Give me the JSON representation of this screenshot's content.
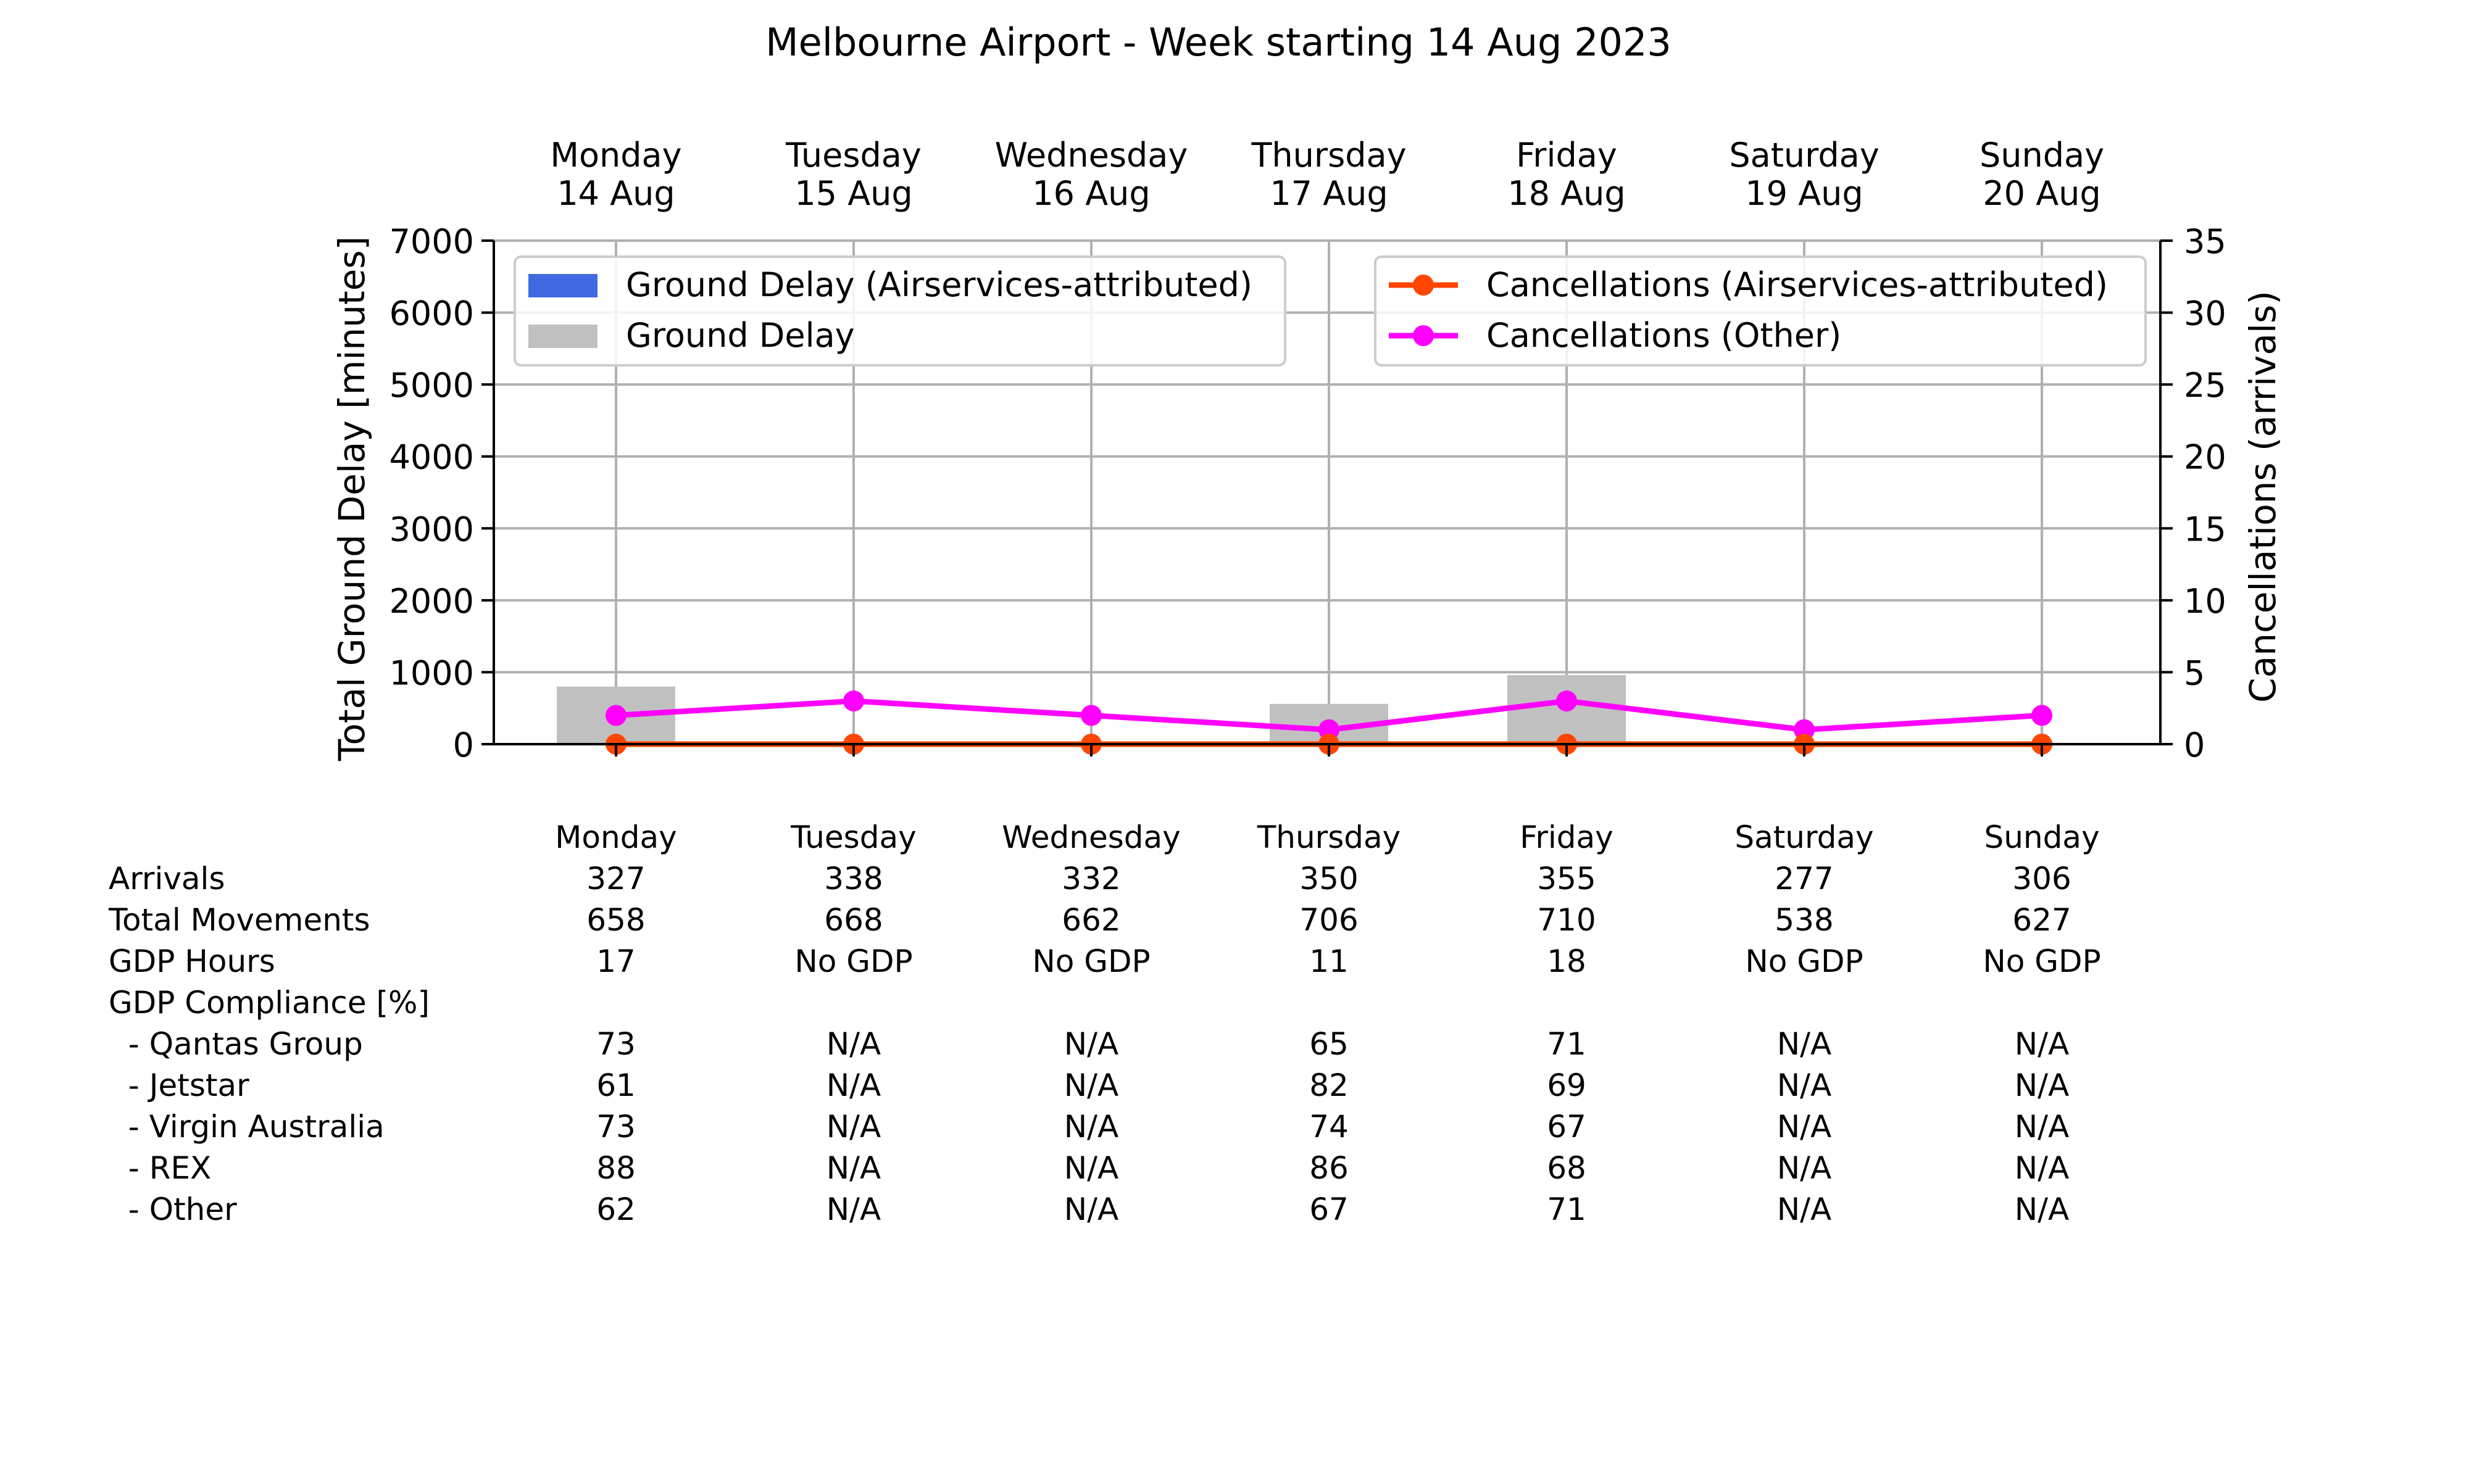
{
  "chart_data": {
    "type": "bar+line",
    "title": "Melbourne Airport - Week starting 14 Aug 2023",
    "top_labels": [
      {
        "day": "Monday",
        "date": "14 Aug"
      },
      {
        "day": "Tuesday",
        "date": "15 Aug"
      },
      {
        "day": "Wednesday",
        "date": "16 Aug"
      },
      {
        "day": "Thursday",
        "date": "17 Aug"
      },
      {
        "day": "Friday",
        "date": "18 Aug"
      },
      {
        "day": "Saturday",
        "date": "19 Aug"
      },
      {
        "day": "Sunday",
        "date": "20 Aug"
      }
    ],
    "left_axis": {
      "label": "Total Ground Delay [minutes]",
      "range": [
        0,
        7000
      ],
      "ticks": [
        0,
        1000,
        2000,
        3000,
        4000,
        5000,
        6000,
        7000
      ]
    },
    "right_axis": {
      "label": "Cancellations (arrivals)",
      "range": [
        0,
        35
      ],
      "ticks": [
        0,
        5,
        10,
        15,
        20,
        25,
        30,
        35
      ]
    },
    "grid": true,
    "bar_series": [
      {
        "name": "Ground Delay (Airservices-attributed)",
        "color": "#4169e1",
        "values": [
          0,
          0,
          0,
          0,
          0,
          0,
          0
        ]
      },
      {
        "name": "Ground Delay",
        "color": "#c0c0c0",
        "values": [
          800,
          0,
          0,
          560,
          960,
          0,
          0
        ]
      }
    ],
    "line_series": [
      {
        "name": "Cancellations (Airservices-attributed)",
        "color": "#ff4500",
        "values": [
          0,
          0,
          0,
          0,
          0,
          0,
          0
        ]
      },
      {
        "name": "Cancellations (Other)",
        "color": "#ff00ff",
        "values": [
          2,
          3,
          2,
          1,
          3,
          1,
          2
        ]
      }
    ],
    "legend_placement": [
      "upper-left",
      "upper-right"
    ]
  },
  "table": {
    "header": [
      "Monday",
      "Tuesday",
      "Wednesday",
      "Thursday",
      "Friday",
      "Saturday",
      "Sunday"
    ],
    "rows": [
      {
        "label": "Arrivals",
        "values": [
          "327",
          "338",
          "332",
          "350",
          "355",
          "277",
          "306"
        ]
      },
      {
        "label": "Total Movements",
        "values": [
          "658",
          "668",
          "662",
          "706",
          "710",
          "538",
          "627"
        ]
      },
      {
        "label": "GDP Hours",
        "values": [
          "17",
          "No GDP",
          "No GDP",
          "11",
          "18",
          "No GDP",
          "No GDP"
        ]
      },
      {
        "label": "GDP Compliance [%]",
        "values": [
          "",
          "",
          "",
          "",
          "",
          "",
          ""
        ]
      },
      {
        "label": "  - Qantas Group",
        "values": [
          "73",
          "N/A",
          "N/A",
          "65",
          "71",
          "N/A",
          "N/A"
        ]
      },
      {
        "label": "  - Jetstar",
        "values": [
          "61",
          "N/A",
          "N/A",
          "82",
          "69",
          "N/A",
          "N/A"
        ]
      },
      {
        "label": "  - Virgin Australia",
        "values": [
          "73",
          "N/A",
          "N/A",
          "74",
          "67",
          "N/A",
          "N/A"
        ]
      },
      {
        "label": "  - REX",
        "values": [
          "88",
          "N/A",
          "N/A",
          "86",
          "68",
          "N/A",
          "N/A"
        ]
      },
      {
        "label": "  - Other",
        "values": [
          "62",
          "N/A",
          "N/A",
          "67",
          "71",
          "N/A",
          "N/A"
        ]
      }
    ]
  }
}
